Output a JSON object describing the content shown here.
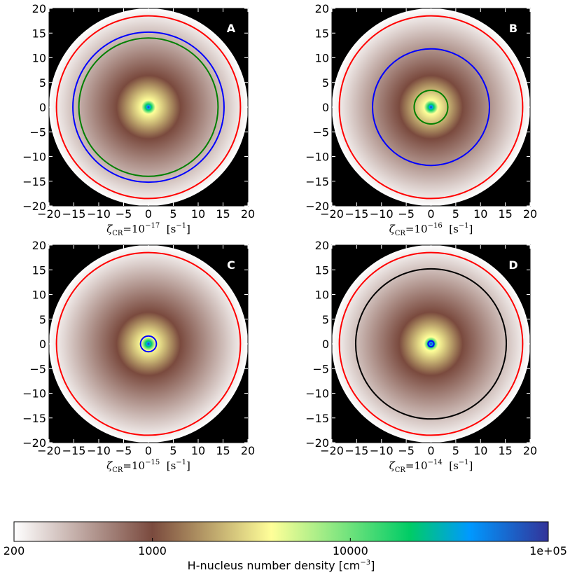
{
  "chart_data": {
    "type": "heatmap",
    "colorbar": {
      "label": "H-nucleus number density",
      "label_unit_base": "[cm",
      "label_unit_exp": "−3",
      "label_unit_close": "]",
      "scale": "log",
      "range": [
        200,
        100000
      ],
      "ticks": [
        {
          "value": 200,
          "label": "200"
        },
        {
          "value": 1000,
          "label": "1000"
        },
        {
          "value": 10000,
          "label": "10000"
        },
        {
          "value": 100000,
          "label": "1e+05"
        }
      ],
      "stops": [
        {
          "value": 200,
          "color": "#ffffff"
        },
        {
          "value": 1000,
          "color": "#7a4a3e"
        },
        {
          "value": 4000,
          "color": "#ffff99"
        },
        {
          "value": 20000,
          "color": "#00cc66"
        },
        {
          "value": 40000,
          "color": "#0099ff"
        },
        {
          "value": 100000,
          "color": "#333399"
        }
      ]
    },
    "panels": [
      {
        "id": "A",
        "xlabel_base": "ζ",
        "xlabel_sub": "CR",
        "xlabel_mid": "=10",
        "xlabel_exp": "−17",
        "xlabel_unit": "[s",
        "xlabel_unit_exp": "−1",
        "xlabel_unit_close": "]",
        "contours": [
          {
            "color": "#ff0000",
            "radius": 18.5
          },
          {
            "color": "#0000ff",
            "radius": 15.2
          },
          {
            "color": "#008000",
            "radius": 14.0
          }
        ]
      },
      {
        "id": "B",
        "xlabel_base": "ζ",
        "xlabel_sub": "CR",
        "xlabel_mid": "=10",
        "xlabel_exp": "−16",
        "xlabel_unit": "[s",
        "xlabel_unit_exp": "−1",
        "xlabel_unit_close": "]",
        "contours": [
          {
            "color": "#ff0000",
            "radius": 18.5
          },
          {
            "color": "#0000ff",
            "radius": 11.8
          },
          {
            "color": "#008000",
            "radius": 3.4
          }
        ]
      },
      {
        "id": "C",
        "xlabel_base": "ζ",
        "xlabel_sub": "CR",
        "xlabel_mid": "=10",
        "xlabel_exp": "−15",
        "xlabel_unit": "[s",
        "xlabel_unit_exp": "−1",
        "xlabel_unit_close": "]",
        "contours": [
          {
            "color": "#ff0000",
            "radius": 18.5
          },
          {
            "color": "#0000ff",
            "radius": 1.6
          }
        ]
      },
      {
        "id": "D",
        "xlabel_base": "ζ",
        "xlabel_sub": "CR",
        "xlabel_mid": "=10",
        "xlabel_exp": "−14",
        "xlabel_unit": "[s",
        "xlabel_unit_exp": "−1",
        "xlabel_unit_close": "]",
        "contours": [
          {
            "color": "#ff0000",
            "radius": 18.5
          },
          {
            "color": "#000000",
            "radius": 15.2
          },
          {
            "color": "#0000ff",
            "radius": 0.6
          }
        ]
      }
    ],
    "axes": {
      "xlim": [
        -20,
        20
      ],
      "ylim": [
        -20,
        20
      ],
      "ticks": [
        -20,
        -15,
        -10,
        -5,
        0,
        5,
        10,
        15,
        20
      ],
      "tick_labels": [
        "−20",
        "−15",
        "−10",
        "−5",
        "0",
        "5",
        "10",
        "15",
        "20"
      ],
      "background": "#000000",
      "cloud_radius": 20,
      "grid": false
    }
  }
}
